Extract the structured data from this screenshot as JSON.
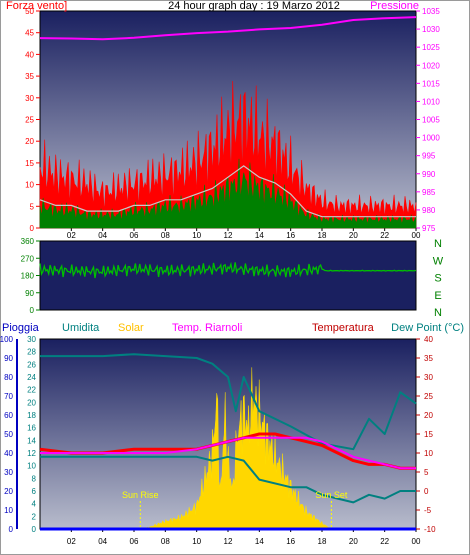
{
  "chart_data": [
    {
      "type": "line",
      "title": "24 hour graph day : 19 Marzo 2012",
      "left_axis_label": "Forza vento]",
      "right_axis_label": "Pressione",
      "x_ticks": [
        "02",
        "04",
        "06",
        "08",
        "10",
        "12",
        "14",
        "16",
        "18",
        "20",
        "22",
        "00"
      ],
      "left_ticks": [
        0,
        5,
        10,
        15,
        20,
        25,
        30,
        35,
        40,
        45,
        50
      ],
      "left_range": [
        0,
        50
      ],
      "right_ticks": [
        975,
        980,
        985,
        990,
        995,
        1000,
        1005,
        1010,
        1015,
        1020,
        1025,
        1030,
        1035
      ],
      "right_range": [
        975,
        1035
      ],
      "colors": {
        "gust": "#ff0000",
        "avg": "#008000",
        "pressure": "#ff00ff",
        "axis_left": "#ff0000",
        "axis_right": "#ff00ff",
        "bg_top": "#1a2060",
        "bg_bottom": "#b8bccc"
      },
      "series": [
        {
          "key": "pressure",
          "axis": "right",
          "x": [
            0,
            2,
            4,
            6,
            8,
            10,
            12,
            14,
            16,
            18,
            20,
            22,
            24
          ],
          "values": [
            1027.5,
            1027.4,
            1027.2,
            1027.6,
            1028.3,
            1028.9,
            1029.3,
            1029.9,
            1030.3,
            1031.2,
            1032.5,
            1033.0,
            1033.3
          ]
        },
        {
          "key": "gust",
          "axis": "left",
          "x": [
            0,
            1,
            2,
            3,
            4,
            5,
            6,
            7,
            8,
            9,
            10,
            11,
            12,
            13,
            14,
            15,
            16,
            17,
            18,
            19,
            20,
            21,
            22,
            23,
            24
          ],
          "values": [
            14,
            12,
            11,
            10,
            8,
            9,
            10,
            11,
            12,
            13,
            15,
            18,
            22,
            25,
            21,
            19,
            14,
            9,
            6,
            5,
            5,
            5,
            5,
            5,
            5
          ]
        },
        {
          "key": "avg",
          "axis": "left",
          "x": [
            0,
            1,
            2,
            3,
            4,
            5,
            6,
            7,
            8,
            9,
            10,
            11,
            12,
            13,
            14,
            15,
            16,
            17,
            18,
            19,
            20,
            21,
            22,
            23,
            24
          ],
          "values": [
            5,
            4,
            4,
            3,
            3,
            3,
            4,
            4,
            5,
            5,
            6,
            7,
            9,
            11,
            9,
            8,
            6,
            3,
            2,
            2,
            2,
            2,
            2,
            2,
            2
          ]
        }
      ]
    },
    {
      "type": "line",
      "ticks_left": [
        0,
        90,
        180,
        270,
        360
      ],
      "range": [
        0,
        360
      ],
      "directions": [
        "N",
        "W",
        "S",
        "E",
        "N"
      ],
      "colors": {
        "direction": "#00c000",
        "axis": "#008000"
      },
      "series": [
        {
          "key": "direction",
          "x": [
            0,
            2,
            4,
            6,
            8,
            10,
            12,
            14,
            16,
            18,
            18.2,
            24
          ],
          "values": [
            210,
            205,
            200,
            215,
            205,
            210,
            220,
            205,
            200,
            215,
            205,
            205
          ]
        }
      ]
    },
    {
      "type": "line",
      "labels": {
        "rain": "Pioggia",
        "humidity": "Umidita",
        "solar": "Solar",
        "temp_riarnoli": "Temp. Riarnoli",
        "temperature": "Temperatura",
        "dew": "Dew Point (°C)",
        "sun_rise": "Sun Rise",
        "sun_set": "Sun Set"
      },
      "rain_ticks": [
        0,
        10,
        20,
        30,
        40,
        50,
        60,
        70,
        80,
        90,
        100
      ],
      "humidity_ticks": [
        0,
        2,
        4,
        6,
        8,
        10,
        12,
        14,
        16,
        18,
        20,
        22,
        24,
        26,
        28,
        30
      ],
      "temp_ticks": [
        -10,
        -5,
        0,
        5,
        10,
        15,
        20,
        25,
        30,
        35,
        40
      ],
      "ranges": {
        "rain": [
          0,
          100
        ],
        "humidity": [
          0,
          30
        ],
        "temp": [
          -10,
          40
        ],
        "solar": [
          0,
          1000
        ]
      },
      "sun_rise_hour": 6.4,
      "sun_set_hour": 18.6,
      "colors": {
        "rain": "#0000ff",
        "humidity": "#008080",
        "solar": "#ffd700",
        "temp_riarnoli": "#ff00ff",
        "temperature": "#ff0000",
        "dew": "#008080",
        "sun": "#ffff00",
        "bg_top": "#1a2060",
        "bg_bottom": "#b8bccc",
        "axis_rain": "#0000c0",
        "axis_humidity": "#008080",
        "axis_temp": "#c00000"
      },
      "series": [
        {
          "key": "humidity_pct",
          "axis": "rain",
          "x": [
            0,
            2,
            4,
            6,
            8,
            10,
            11,
            12,
            12.5,
            13,
            14,
            16,
            18,
            20,
            21,
            22,
            23,
            24
          ],
          "values": [
            91,
            91,
            91,
            92,
            91,
            90,
            87,
            80,
            62,
            80,
            62,
            54,
            45,
            42,
            58,
            50,
            72,
            66
          ]
        },
        {
          "key": "dew",
          "axis": "temp",
          "x": [
            0,
            2,
            4,
            6,
            8,
            10,
            11,
            12,
            13,
            14,
            16,
            17,
            18,
            19,
            20,
            21,
            22,
            23,
            24
          ],
          "values": [
            9,
            9,
            9,
            9,
            9,
            9,
            8,
            9,
            8,
            3,
            1,
            1,
            -1,
            -2,
            -3,
            -1,
            -2,
            0,
            0
          ]
        },
        {
          "key": "temperature",
          "axis": "temp",
          "x": [
            0,
            2,
            4,
            6,
            8,
            10,
            11,
            12,
            13,
            14,
            15,
            16,
            17,
            18,
            19,
            20,
            21,
            22,
            23,
            24
          ],
          "values": [
            11,
            10,
            10,
            11,
            11,
            11,
            12,
            13,
            14,
            15,
            15,
            14,
            13,
            12,
            10,
            8,
            7,
            7,
            6,
            6
          ]
        },
        {
          "key": "temp_riarnoli",
          "axis": "temp",
          "x": [
            0,
            2,
            4,
            6,
            8,
            10,
            11,
            12,
            13,
            14,
            15,
            16,
            17,
            18,
            19,
            20,
            21,
            22,
            23,
            24
          ],
          "values": [
            10,
            10,
            10,
            10,
            10,
            11,
            12,
            13,
            14,
            14,
            14,
            14,
            14,
            13,
            11,
            9,
            8,
            7,
            6,
            6
          ]
        },
        {
          "key": "rain",
          "axis": "rain",
          "x": [
            0,
            24
          ],
          "values": [
            0,
            0
          ]
        },
        {
          "key": "solar",
          "axis": "solar",
          "x": [
            6.4,
            7,
            8,
            9,
            10,
            10.5,
            11,
            11.3,
            11.5,
            11.8,
            12,
            12.3,
            12.6,
            13,
            13.3,
            13.6,
            14,
            14.5,
            15,
            15.5,
            16,
            16.5,
            17,
            17.5,
            18,
            18.6
          ],
          "values": [
            0,
            10,
            40,
            60,
            120,
            250,
            400,
            700,
            150,
            600,
            350,
            200,
            500,
            620,
            520,
            700,
            600,
            480,
            380,
            300,
            220,
            150,
            90,
            60,
            30,
            0
          ]
        }
      ]
    }
  ]
}
